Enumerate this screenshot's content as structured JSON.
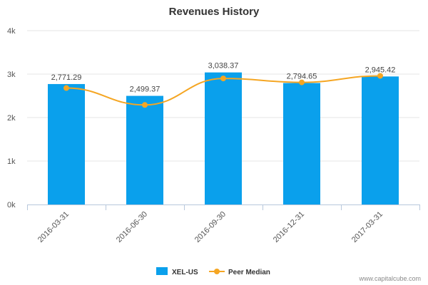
{
  "chart_data": {
    "type": "bar",
    "title": "Revenues History",
    "categories": [
      "2016-03-31",
      "2016-06-30",
      "2016-09-30",
      "2016-12-31",
      "2017-03-31"
    ],
    "series": [
      {
        "name": "XEL-US",
        "kind": "bar",
        "color": "#0aa0ec",
        "values": [
          2771.29,
          2499.37,
          3038.37,
          2794.65,
          2945.42
        ],
        "labels": [
          "2,771.29",
          "2,499.37",
          "3,038.37",
          "2,794.65",
          "2,945.42"
        ]
      },
      {
        "name": "Peer Median",
        "kind": "line",
        "color": "#f5a623",
        "values": [
          2680,
          2290,
          2900,
          2810,
          2960
        ]
      }
    ],
    "y_ticks": [
      {
        "value": 0,
        "label": "0k"
      },
      {
        "value": 1000,
        "label": "1k"
      },
      {
        "value": 2000,
        "label": "2k"
      },
      {
        "value": 3000,
        "label": "3k"
      },
      {
        "value": 4000,
        "label": "4k"
      }
    ],
    "ylim": [
      0,
      4000
    ],
    "grid": true,
    "legend_position": "bottom-center"
  },
  "credit": "www.capitalcube.com"
}
